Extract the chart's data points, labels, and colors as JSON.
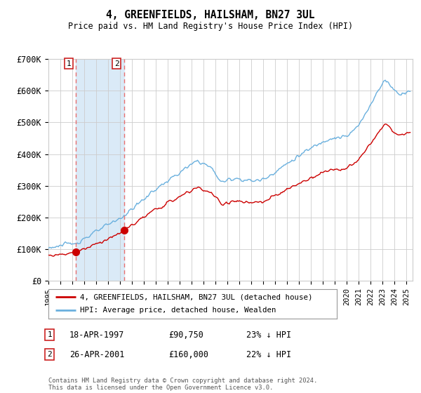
{
  "title": "4, GREENFIELDS, HAILSHAM, BN27 3UL",
  "subtitle": "Price paid vs. HM Land Registry's House Price Index (HPI)",
  "ylim": [
    0,
    700000
  ],
  "yticks": [
    0,
    100000,
    200000,
    300000,
    400000,
    500000,
    600000,
    700000
  ],
  "ytick_labels": [
    "£0",
    "£100K",
    "£200K",
    "£300K",
    "£400K",
    "£500K",
    "£600K",
    "£700K"
  ],
  "xlim_start": 1995.0,
  "xlim_end": 2025.5,
  "xtick_years": [
    1995,
    1996,
    1997,
    1998,
    1999,
    2000,
    2001,
    2002,
    2003,
    2004,
    2005,
    2006,
    2007,
    2008,
    2009,
    2010,
    2011,
    2012,
    2013,
    2014,
    2015,
    2016,
    2017,
    2018,
    2019,
    2020,
    2021,
    2022,
    2023,
    2024,
    2025
  ],
  "purchase1_x": 1997.3,
  "purchase1_y": 90750,
  "purchase1_label": "1",
  "purchase2_x": 2001.32,
  "purchase2_y": 160000,
  "purchase2_label": "2",
  "hpi_color": "#6ab0de",
  "property_color": "#cc0000",
  "vline_color": "#e87070",
  "highlight_color": "#daeaf7",
  "background_color": "#ffffff",
  "grid_color": "#cccccc",
  "legend_property": "4, GREENFIELDS, HAILSHAM, BN27 3UL (detached house)",
  "legend_hpi": "HPI: Average price, detached house, Wealden",
  "table_rows": [
    {
      "num": "1",
      "date": "18-APR-1997",
      "price": "£90,750",
      "hpi": "23% ↓ HPI"
    },
    {
      "num": "2",
      "date": "26-APR-2001",
      "price": "£160,000",
      "hpi": "22% ↓ HPI"
    }
  ],
  "footnote": "Contains HM Land Registry data © Crown copyright and database right 2024.\nThis data is licensed under the Open Government Licence v3.0."
}
